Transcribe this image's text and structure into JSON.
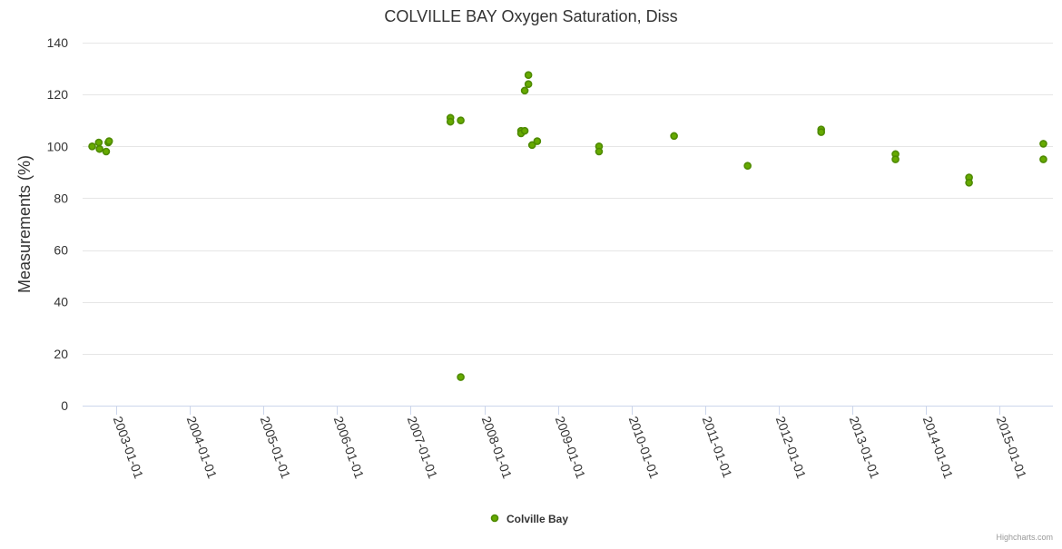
{
  "chart_data": {
    "type": "scatter",
    "title": "COLVILLE BAY Oxygen Saturation, Diss",
    "xlabel": "",
    "ylabel": "Measurements (%)",
    "ylim": [
      0,
      140
    ],
    "yticks": [
      0,
      20,
      40,
      60,
      80,
      100,
      120,
      140
    ],
    "xlim": [
      2002.54,
      2015.73
    ],
    "xtick_labels": [
      "2003-01-01",
      "2004-01-01",
      "2005-01-01",
      "2006-01-01",
      "2007-01-01",
      "2008-01-01",
      "2009-01-01",
      "2010-01-01",
      "2011-01-01",
      "2012-01-01",
      "2013-01-01",
      "2014-01-01",
      "2015-01-01"
    ],
    "xtick_values": [
      2003,
      2004,
      2005,
      2006,
      2007,
      2008,
      2009,
      2010,
      2011,
      2012,
      2013,
      2014,
      2015
    ],
    "grid": "horizontal",
    "legend_position": "bottom-center",
    "series": [
      {
        "name": "Colville Bay",
        "color": "#66aa00",
        "points": [
          {
            "x": 2002.67,
            "y": 100
          },
          {
            "x": 2002.76,
            "y": 101.5
          },
          {
            "x": 2002.77,
            "y": 99
          },
          {
            "x": 2002.86,
            "y": 98
          },
          {
            "x": 2002.89,
            "y": 101.5
          },
          {
            "x": 2002.9,
            "y": 102
          },
          {
            "x": 2007.54,
            "y": 111
          },
          {
            "x": 2007.54,
            "y": 109.5
          },
          {
            "x": 2007.68,
            "y": 110
          },
          {
            "x": 2007.68,
            "y": 11
          },
          {
            "x": 2008.5,
            "y": 106
          },
          {
            "x": 2008.5,
            "y": 105
          },
          {
            "x": 2008.55,
            "y": 106
          },
          {
            "x": 2008.55,
            "y": 121.5
          },
          {
            "x": 2008.6,
            "y": 124
          },
          {
            "x": 2008.6,
            "y": 127.5
          },
          {
            "x": 2008.65,
            "y": 100.5
          },
          {
            "x": 2008.72,
            "y": 102
          },
          {
            "x": 2009.56,
            "y": 100
          },
          {
            "x": 2009.56,
            "y": 98
          },
          {
            "x": 2010.58,
            "y": 104
          },
          {
            "x": 2011.58,
            "y": 92.5
          },
          {
            "x": 2012.58,
            "y": 106.5
          },
          {
            "x": 2012.58,
            "y": 105.5
          },
          {
            "x": 2013.59,
            "y": 97
          },
          {
            "x": 2013.59,
            "y": 95
          },
          {
            "x": 2014.59,
            "y": 88
          },
          {
            "x": 2014.59,
            "y": 86
          },
          {
            "x": 2015.6,
            "y": 101
          },
          {
            "x": 2015.6,
            "y": 95
          }
        ]
      }
    ]
  },
  "credits": "Highcharts.com"
}
